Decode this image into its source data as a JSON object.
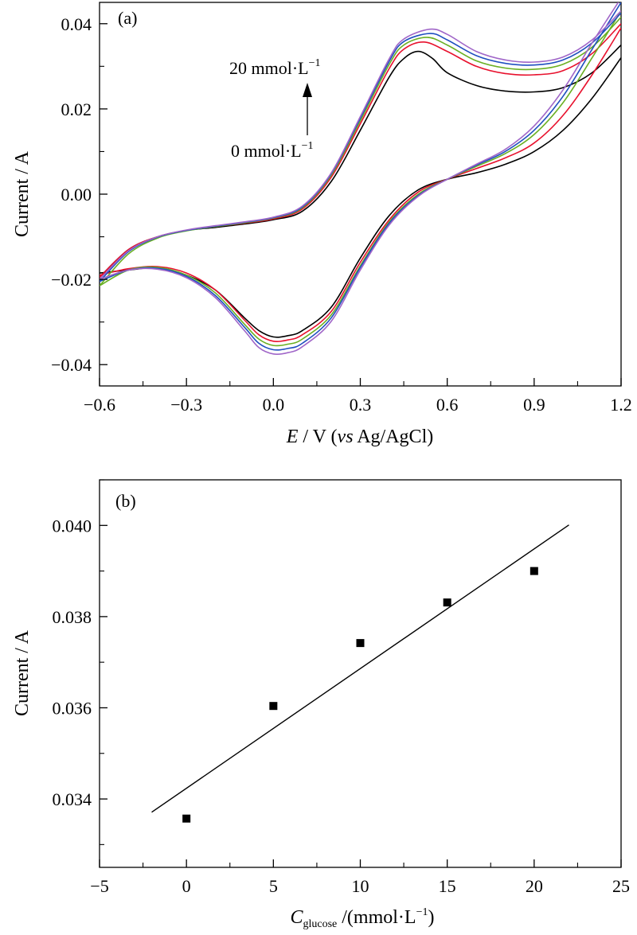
{
  "chart_data": [
    {
      "panel": "(a)",
      "type": "line",
      "title": "",
      "xlabel_italic": "E",
      "xlabel_mid": " / V (",
      "xlabel_italic2": "vs",
      "xlabel_end": " Ag/AgCl)",
      "ylabel": "Current / A",
      "xlim": [
        -0.6,
        1.2
      ],
      "ylim": [
        -0.045,
        0.045
      ],
      "xticks": [
        -0.6,
        -0.3,
        0.0,
        0.3,
        0.6,
        0.9,
        1.2
      ],
      "xtick_labels": [
        "−0.6",
        "−0.3",
        "0.0",
        "0.3",
        "0.6",
        "0.9",
        "1.2"
      ],
      "yticks": [
        -0.04,
        -0.02,
        0.0,
        0.02,
        0.04
      ],
      "ytick_labels": [
        "−0.04",
        "−0.02",
        "0.00",
        "0.02",
        "0.04"
      ],
      "grid": false,
      "annotations": {
        "top_label": "20 mmol·L",
        "top_sup": "−1",
        "bottom_label": "0 mmol·L",
        "bottom_sup": "−1"
      },
      "series": [
        {
          "color": "#000000",
          "forward": [
            [
              -0.6,
              -0.0195
            ],
            [
              -0.5,
              -0.013
            ],
            [
              -0.4,
              -0.01
            ],
            [
              -0.3,
              -0.0085
            ],
            [
              -0.2,
              -0.0078
            ],
            [
              -0.1,
              -0.007
            ],
            [
              0.0,
              -0.006
            ],
            [
              0.1,
              -0.004
            ],
            [
              0.2,
              0.003
            ],
            [
              0.3,
              0.015
            ],
            [
              0.4,
              0.0275
            ],
            [
              0.45,
              0.0318
            ],
            [
              0.5,
              0.0335
            ],
            [
              0.55,
              0.0318
            ],
            [
              0.6,
              0.0285
            ],
            [
              0.7,
              0.0255
            ],
            [
              0.8,
              0.0242
            ],
            [
              0.9,
              0.024
            ],
            [
              1.0,
              0.025
            ],
            [
              1.1,
              0.0285
            ],
            [
              1.2,
              0.035
            ]
          ],
          "reverse": [
            [
              1.2,
              0.032
            ],
            [
              1.1,
              0.0225
            ],
            [
              1.0,
              0.015
            ],
            [
              0.9,
              0.01
            ],
            [
              0.8,
              0.007
            ],
            [
              0.7,
              0.005
            ],
            [
              0.6,
              0.0035
            ],
            [
              0.5,
              0.001
            ],
            [
              0.4,
              -0.005
            ],
            [
              0.3,
              -0.015
            ],
            [
              0.2,
              -0.0265
            ],
            [
              0.1,
              -0.032
            ],
            [
              0.05,
              -0.0332
            ],
            [
              0.0,
              -0.0335
            ],
            [
              -0.05,
              -0.032
            ],
            [
              -0.1,
              -0.029
            ],
            [
              -0.2,
              -0.0225
            ],
            [
              -0.3,
              -0.019
            ],
            [
              -0.4,
              -0.0173
            ],
            [
              -0.5,
              -0.0178
            ],
            [
              -0.6,
              -0.0185
            ]
          ]
        },
        {
          "color": "#e8112d",
          "forward": [
            [
              -0.6,
              -0.0195
            ],
            [
              -0.5,
              -0.013
            ],
            [
              -0.4,
              -0.01
            ],
            [
              -0.3,
              -0.0085
            ],
            [
              -0.2,
              -0.0076
            ],
            [
              -0.1,
              -0.0068
            ],
            [
              0.0,
              -0.0058
            ],
            [
              0.1,
              -0.0035
            ],
            [
              0.2,
              0.004
            ],
            [
              0.3,
              0.0165
            ],
            [
              0.4,
              0.0295
            ],
            [
              0.45,
              0.034
            ],
            [
              0.52,
              0.0357
            ],
            [
              0.6,
              0.0335
            ],
            [
              0.7,
              0.03
            ],
            [
              0.8,
              0.0283
            ],
            [
              0.9,
              0.028
            ],
            [
              1.0,
              0.029
            ],
            [
              1.1,
              0.033
            ],
            [
              1.2,
              0.04
            ]
          ],
          "reverse": [
            [
              1.2,
              0.039
            ],
            [
              1.1,
              0.028
            ],
            [
              1.0,
              0.0185
            ],
            [
              0.9,
              0.012
            ],
            [
              0.8,
              0.0085
            ],
            [
              0.7,
              0.006
            ],
            [
              0.6,
              0.0035
            ],
            [
              0.5,
              0.0005
            ],
            [
              0.4,
              -0.006
            ],
            [
              0.3,
              -0.016
            ],
            [
              0.2,
              -0.0275
            ],
            [
              0.1,
              -0.033
            ],
            [
              0.05,
              -0.0342
            ],
            [
              0.0,
              -0.0345
            ],
            [
              -0.05,
              -0.033
            ],
            [
              -0.1,
              -0.0295
            ],
            [
              -0.2,
              -0.0225
            ],
            [
              -0.3,
              -0.0185
            ],
            [
              -0.4,
              -0.017
            ],
            [
              -0.5,
              -0.0175
            ],
            [
              -0.6,
              -0.019
            ]
          ]
        },
        {
          "color": "#6ab023",
          "forward": [
            [
              -0.6,
              -0.0215
            ],
            [
              -0.5,
              -0.014
            ],
            [
              -0.4,
              -0.0103
            ],
            [
              -0.3,
              -0.0086
            ],
            [
              -0.2,
              -0.0076
            ],
            [
              -0.1,
              -0.0067
            ],
            [
              0.0,
              -0.0056
            ],
            [
              0.1,
              -0.0032
            ],
            [
              0.2,
              0.0045
            ],
            [
              0.3,
              0.0172
            ],
            [
              0.4,
              0.0305
            ],
            [
              0.45,
              0.035
            ],
            [
              0.53,
              0.0368
            ],
            [
              0.6,
              0.035
            ],
            [
              0.7,
              0.0313
            ],
            [
              0.8,
              0.0296
            ],
            [
              0.9,
              0.0293
            ],
            [
              1.0,
              0.0305
            ],
            [
              1.1,
              0.0345
            ],
            [
              1.2,
              0.0415
            ]
          ],
          "reverse": [
            [
              1.2,
              0.043
            ],
            [
              1.1,
              0.032
            ],
            [
              1.0,
              0.0215
            ],
            [
              0.9,
              0.014
            ],
            [
              0.8,
              0.0095
            ],
            [
              0.7,
              0.0065
            ],
            [
              0.6,
              0.0035
            ],
            [
              0.5,
              0.0
            ],
            [
              0.4,
              -0.0065
            ],
            [
              0.3,
              -0.0168
            ],
            [
              0.2,
              -0.0283
            ],
            [
              0.1,
              -0.034
            ],
            [
              0.05,
              -0.0352
            ],
            [
              0.0,
              -0.0355
            ],
            [
              -0.05,
              -0.034
            ],
            [
              -0.1,
              -0.0305
            ],
            [
              -0.2,
              -0.0232
            ],
            [
              -0.3,
              -0.019
            ],
            [
              -0.4,
              -0.0172
            ],
            [
              -0.5,
              -0.0178
            ],
            [
              -0.6,
              -0.0215
            ]
          ]
        },
        {
          "color": "#1f4fbf",
          "forward": [
            [
              -0.6,
              -0.0205
            ],
            [
              -0.5,
              -0.0135
            ],
            [
              -0.4,
              -0.0101
            ],
            [
              -0.3,
              -0.0085
            ],
            [
              -0.2,
              -0.0075
            ],
            [
              -0.1,
              -0.0066
            ],
            [
              0.0,
              -0.0055
            ],
            [
              0.1,
              -0.003
            ],
            [
              0.2,
              0.0048
            ],
            [
              0.3,
              0.0178
            ],
            [
              0.4,
              0.0312
            ],
            [
              0.45,
              0.0358
            ],
            [
              0.54,
              0.0377
            ],
            [
              0.6,
              0.0362
            ],
            [
              0.7,
              0.0325
            ],
            [
              0.8,
              0.0307
            ],
            [
              0.9,
              0.0303
            ],
            [
              1.0,
              0.0315
            ],
            [
              1.1,
              0.0355
            ],
            [
              1.2,
              0.0425
            ]
          ],
          "reverse": [
            [
              1.2,
              0.045
            ],
            [
              1.1,
              0.034
            ],
            [
              1.0,
              0.023
            ],
            [
              0.9,
              0.015
            ],
            [
              0.8,
              0.01
            ],
            [
              0.7,
              0.0068
            ],
            [
              0.6,
              0.0035
            ],
            [
              0.5,
              -0.0003
            ],
            [
              0.4,
              -0.0068
            ],
            [
              0.3,
              -0.0172
            ],
            [
              0.2,
              -0.029
            ],
            [
              0.1,
              -0.035
            ],
            [
              0.05,
              -0.0362
            ],
            [
              0.0,
              -0.0365
            ],
            [
              -0.05,
              -0.035
            ],
            [
              -0.1,
              -0.0312
            ],
            [
              -0.2,
              -0.0238
            ],
            [
              -0.3,
              -0.0193
            ],
            [
              -0.4,
              -0.0174
            ],
            [
              -0.5,
              -0.0178
            ],
            [
              -0.6,
              -0.0205
            ]
          ]
        },
        {
          "color": "#a066c8",
          "forward": [
            [
              -0.6,
              -0.02
            ],
            [
              -0.5,
              -0.0133
            ],
            [
              -0.4,
              -0.01
            ],
            [
              -0.3,
              -0.0084
            ],
            [
              -0.2,
              -0.0074
            ],
            [
              -0.1,
              -0.0065
            ],
            [
              0.0,
              -0.0054
            ],
            [
              0.1,
              -0.0028
            ],
            [
              0.2,
              0.005
            ],
            [
              0.3,
              0.0182
            ],
            [
              0.4,
              0.0318
            ],
            [
              0.45,
              0.0364
            ],
            [
              0.54,
              0.0387
            ],
            [
              0.6,
              0.0375
            ],
            [
              0.7,
              0.0335
            ],
            [
              0.8,
              0.0315
            ],
            [
              0.9,
              0.031
            ],
            [
              1.0,
              0.0322
            ],
            [
              1.1,
              0.0362
            ],
            [
              1.2,
              0.043
            ]
          ],
          "reverse": [
            [
              1.2,
              0.046
            ],
            [
              1.1,
              0.0355
            ],
            [
              1.0,
              0.0245
            ],
            [
              0.9,
              0.016
            ],
            [
              0.8,
              0.0105
            ],
            [
              0.7,
              0.007
            ],
            [
              0.6,
              0.0035
            ],
            [
              0.5,
              -0.0005
            ],
            [
              0.4,
              -0.0072
            ],
            [
              0.3,
              -0.0178
            ],
            [
              0.2,
              -0.0298
            ],
            [
              0.1,
              -0.0358
            ],
            [
              0.05,
              -0.0372
            ],
            [
              0.0,
              -0.0375
            ],
            [
              -0.05,
              -0.036
            ],
            [
              -0.1,
              -0.032
            ],
            [
              -0.2,
              -0.0243
            ],
            [
              -0.3,
              -0.0196
            ],
            [
              -0.4,
              -0.0176
            ],
            [
              -0.5,
              -0.0178
            ],
            [
              -0.6,
              -0.02
            ]
          ]
        }
      ]
    },
    {
      "panel": "(b)",
      "type": "scatter",
      "title": "",
      "xlabel_italic": "C",
      "xlabel_sub": "glucose",
      "xlabel_end": " /(mmol·L",
      "xlabel_sup": "−1",
      "xlabel_close": ")",
      "ylabel": "Current / A",
      "xlim": [
        -5,
        25
      ],
      "ylim": [
        0.0325,
        0.041
      ],
      "xticks": [
        -5,
        0,
        5,
        10,
        15,
        20,
        25
      ],
      "xtick_labels": [
        "−5",
        "0",
        "5",
        "10",
        "15",
        "20",
        "25"
      ],
      "yticks": [
        0.034,
        0.036,
        0.038,
        0.04
      ],
      "ytick_labels": [
        "0.034",
        "0.036",
        "0.038",
        "0.040"
      ],
      "grid": false,
      "points": [
        {
          "x": 0,
          "y": 0.03357
        },
        {
          "x": 5,
          "y": 0.03604
        },
        {
          "x": 10,
          "y": 0.03742
        },
        {
          "x": 15,
          "y": 0.03831
        },
        {
          "x": 20,
          "y": 0.039
        }
      ],
      "fit_line": [
        [
          -2,
          0.03371
        ],
        [
          22,
          0.04001
        ]
      ]
    }
  ]
}
